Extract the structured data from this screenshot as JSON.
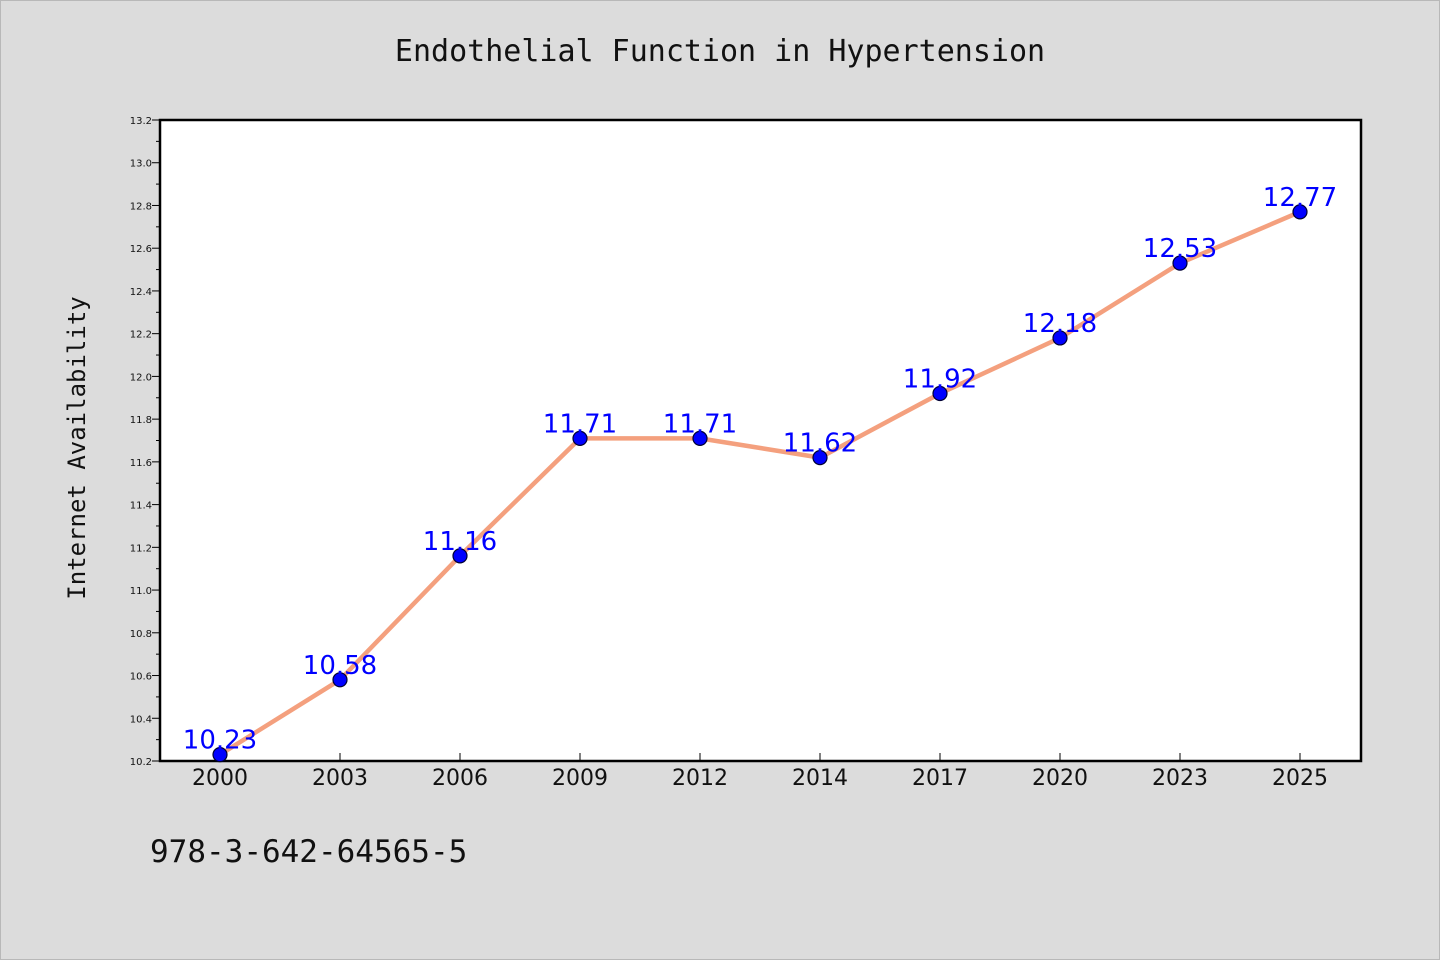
{
  "chart_data": {
    "type": "line",
    "title": "Endothelial Function in Hypertension",
    "xlabel": "",
    "ylabel": "Internet Availability",
    "categories": [
      "2000",
      "2003",
      "2006",
      "2009",
      "2012",
      "2014",
      "2017",
      "2020",
      "2023",
      "2025"
    ],
    "series": [
      {
        "values": [
          10.23,
          10.58,
          11.16,
          11.71,
          11.71,
          11.62,
          11.92,
          12.18,
          12.53,
          12.77
        ],
        "data_labels": [
          "10.23",
          "10.58",
          "11.16",
          "11.71",
          "11.71",
          "11.62",
          "11.92",
          "12.18",
          "12.53",
          "12.77"
        ],
        "line_color": "#f4a07e",
        "marker_color": "#0000ff"
      }
    ],
    "ylim": [
      10.2,
      13.2
    ],
    "yticks": [
      "10.2",
      "10.4",
      "10.6",
      "10.8",
      "11.0",
      "11.2",
      "11.4",
      "11.6",
      "11.8",
      "12.0",
      "12.2",
      "12.4",
      "12.6",
      "12.8",
      "13.0",
      "13.2"
    ],
    "grid": false,
    "legend": "none"
  },
  "footer_text": "978-3-642-64565-5",
  "colors": {
    "background": "#dcdcdc",
    "plot_background": "#ffffff",
    "line": "#f4a07e",
    "marker": "#0000ff",
    "data_label": "#0000ff"
  }
}
